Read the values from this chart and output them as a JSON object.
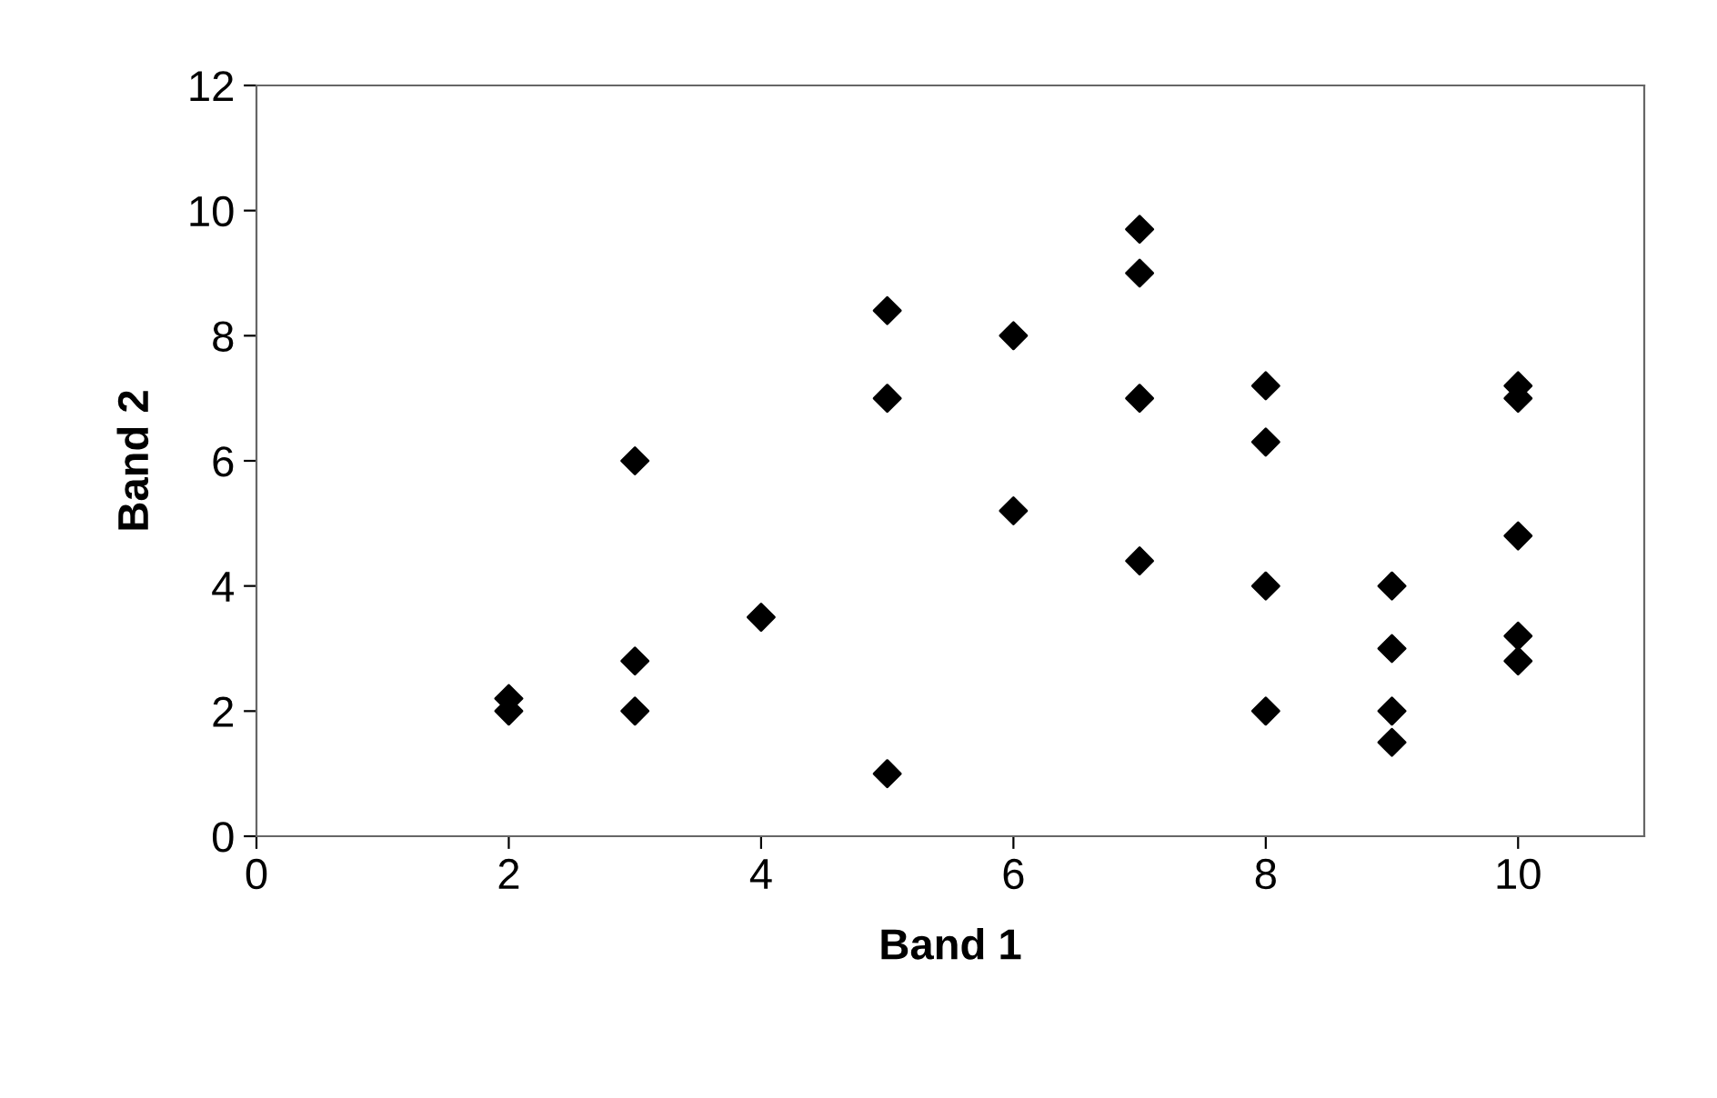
{
  "chart_data": {
    "type": "scatter",
    "xlabel": "Band 1",
    "ylabel": "Band 2",
    "x": [
      2,
      2,
      3,
      3,
      3,
      4,
      5,
      5,
      5,
      6,
      6,
      7,
      7,
      7,
      7,
      8,
      8,
      8,
      8,
      9,
      9,
      9,
      9,
      10,
      10,
      10,
      10,
      10
    ],
    "series": [
      {
        "color": "#000000",
        "values": [
          2.2,
          2,
          6,
          2.8,
          2,
          3.5,
          8.4,
          7,
          1,
          8,
          5.2,
          9.7,
          9,
          7,
          4.4,
          7.2,
          6.3,
          4,
          2,
          4,
          3,
          2,
          1.5,
          7.2,
          7,
          4.8,
          3.2,
          2.8
        ]
      }
    ],
    "xlim": [
      0,
      11
    ],
    "xticks": [
      0,
      2,
      4,
      6,
      8,
      10
    ],
    "ylim": [
      0,
      12
    ],
    "yticks": [
      0,
      2,
      4,
      6,
      8,
      10,
      12
    ],
    "marker": "diamond",
    "grid": false
  }
}
